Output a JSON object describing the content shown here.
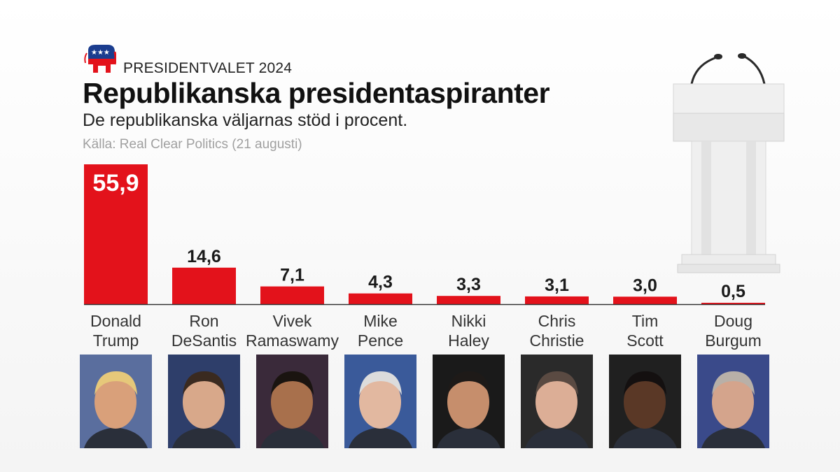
{
  "header": {
    "kicker": "PRESIDENTVALET 2024",
    "title": "Republikanska presidentaspiranter",
    "subtitle": "De republikanska väljarnas stöd i procent.",
    "source": "Källa: Real Clear Politics (21 augusti)"
  },
  "icons": {
    "logo": "republican-elephant-icon",
    "podium": "podium-with-microphones-icon"
  },
  "colors": {
    "bar": "#e3121b",
    "baseline": "#333333",
    "value_label": "#1a1a1a",
    "category_label": "#333333",
    "logo_blue": "#1b3d8f",
    "logo_red": "#e3121b"
  },
  "chart_data": {
    "type": "bar",
    "title": "Republikanska presidentaspiranter",
    "subtitle": "De republikanska väljarnas stöd i procent.",
    "source": "Källa: Real Clear Politics (21 augusti)",
    "categories": [
      [
        "Donald",
        "Trump"
      ],
      [
        "Ron",
        "DeSantis"
      ],
      [
        "Vivek",
        "Ramaswamy"
      ],
      [
        "Mike",
        "Pence"
      ],
      [
        "Nikki",
        "Haley"
      ],
      [
        "Chris",
        "Christie"
      ],
      [
        "Tim",
        "Scott"
      ],
      [
        "Doug",
        "Burgum"
      ]
    ],
    "values": [
      55.9,
      14.6,
      7.1,
      4.3,
      3.3,
      3.1,
      3.0,
      0.5
    ],
    "value_labels": [
      "55,9",
      "14,6",
      "7,1",
      "4,3",
      "3,3",
      "3,1",
      "3,0",
      "0,5"
    ],
    "xlabel": "",
    "ylabel": "",
    "ylim": [
      0,
      55.9
    ],
    "grid": false,
    "legend": "none",
    "first_label_inside_bar": true
  }
}
